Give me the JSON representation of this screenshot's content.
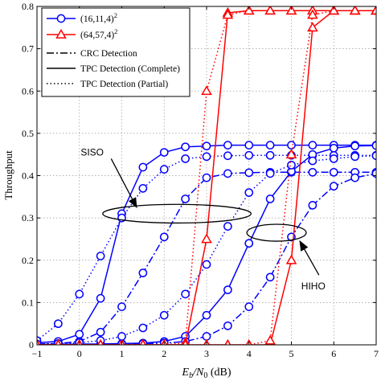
{
  "chart_data": {
    "type": "line",
    "xlabel": {
      "main": "E",
      "sub": "b",
      "mid": "/N",
      "sub2": "0",
      "unit": " (dB)"
    },
    "ylabel": "Throughput",
    "xlim": [
      -1,
      7
    ],
    "ylim": [
      0,
      0.8
    ],
    "xticks": [
      -1,
      0,
      1,
      2,
      3,
      4,
      5,
      6,
      7
    ],
    "xtick_labels": [
      "−1",
      "0",
      "1",
      "2",
      "3",
      "4",
      "5",
      "6",
      "7"
    ],
    "yticks": [
      0,
      0.1,
      0.2,
      0.3,
      0.4,
      0.5,
      0.6,
      0.7,
      0.8
    ],
    "ytick_labels": [
      "0",
      "0.1",
      "0.2",
      "0.3",
      "0.4",
      "0.5",
      "0.6",
      "0.7",
      "0.8"
    ],
    "grid": true,
    "legend_position": "top-left",
    "legend": [
      {
        "label": "(16,11,4)",
        "sup": "2",
        "color": "#0000ff",
        "marker": "circle",
        "dash": "solid"
      },
      {
        "label": "(64,57,4)",
        "sup": "2",
        "color": "#ff0000",
        "marker": "triangle",
        "dash": "solid"
      },
      {
        "label": "CRC Detection",
        "color": "#000000",
        "marker": "none",
        "dash": "dashdot"
      },
      {
        "label": "TPC Detection (Complete)",
        "color": "#000000",
        "marker": "none",
        "dash": "solid"
      },
      {
        "label": "TPC Detection (Partial)",
        "color": "#000000",
        "marker": "none",
        "dash": "dotted"
      }
    ],
    "x": [
      -1,
      -0.5,
      0,
      0.5,
      1,
      1.5,
      2,
      2.5,
      3,
      3.5,
      4,
      4.5,
      5,
      5.5,
      6,
      6.5,
      7
    ],
    "series": [
      {
        "color": "#0000ff",
        "marker": "circle",
        "dash": "solid",
        "values": [
          0.005,
          0.008,
          0.025,
          0.11,
          0.31,
          0.42,
          0.455,
          0.468,
          0.47,
          0.472,
          0.472,
          0.472,
          0.472,
          0.472,
          0.472,
          0.472,
          0.472
        ]
      },
      {
        "color": "#0000ff",
        "marker": "circle",
        "dash": "dashdot",
        "values": [
          0.002,
          0.003,
          0.008,
          0.03,
          0.09,
          0.17,
          0.255,
          0.345,
          0.395,
          0.405,
          0.407,
          0.408,
          0.408,
          0.408,
          0.408,
          0.408,
          0.408
        ]
      },
      {
        "color": "#0000ff",
        "marker": "circle",
        "dash": "dotted",
        "values": [
          0.01,
          0.05,
          0.12,
          0.21,
          0.3,
          0.37,
          0.415,
          0.44,
          0.445,
          0.447,
          0.448,
          0.448,
          0.448,
          0.448,
          0.448,
          0.448,
          0.448
        ]
      },
      {
        "color": "#0000ff",
        "marker": "circle",
        "dash": "solid",
        "values": [
          0.001,
          0.001,
          0.002,
          0.002,
          0.003,
          0.004,
          0.008,
          0.02,
          0.07,
          0.13,
          0.24,
          0.345,
          0.41,
          0.45,
          0.465,
          0.47,
          0.471
        ]
      },
      {
        "color": "#0000ff",
        "marker": "circle",
        "dash": "dashdot",
        "values": [
          0.0,
          0.0,
          0.001,
          0.001,
          0.002,
          0.003,
          0.004,
          0.008,
          0.02,
          0.045,
          0.09,
          0.16,
          0.255,
          0.33,
          0.375,
          0.395,
          0.405
        ]
      },
      {
        "color": "#0000ff",
        "marker": "circle",
        "dash": "dotted",
        "values": [
          0.002,
          0.003,
          0.005,
          0.01,
          0.02,
          0.04,
          0.07,
          0.12,
          0.19,
          0.28,
          0.36,
          0.405,
          0.425,
          0.435,
          0.44,
          0.445,
          0.447
        ]
      },
      {
        "color": "#ff0000",
        "marker": "triangle",
        "dash": "solid",
        "values": [
          0.0,
          0.0,
          0.0,
          0.0,
          0.0,
          0.0,
          0.0,
          0.0,
          0.25,
          0.785,
          0.79,
          0.79,
          0.79,
          0.79,
          0.79,
          0.79,
          0.79
        ]
      },
      {
        "color": "#ff0000",
        "marker": "triangle",
        "dash": "dotted",
        "values": [
          0.0,
          0.0,
          0.0,
          0.0,
          0.0,
          0.0,
          0.0,
          0.005,
          0.6,
          0.78,
          0.79,
          0.79,
          0.79,
          0.79,
          0.79,
          0.79,
          0.79
        ]
      },
      {
        "color": "#ff0000",
        "marker": "triangle",
        "dash": "solid",
        "values": [
          0.0,
          0.0,
          0.0,
          0.0,
          0.0,
          0.0,
          0.0,
          0.0,
          0.0,
          0.0,
          0.0,
          0.0,
          0.2,
          0.75,
          0.79,
          0.79,
          0.79
        ]
      },
      {
        "color": "#ff0000",
        "marker": "triangle",
        "dash": "dotted",
        "values": [
          0.0,
          0.0,
          0.0,
          0.0,
          0.0,
          0.0,
          0.0,
          0.0,
          0.0,
          0.0,
          0.0,
          0.01,
          0.45,
          0.78,
          0.79,
          0.79,
          0.79
        ]
      }
    ],
    "annotations": [
      {
        "text": "SISO",
        "ellipse_center": [
          2.3,
          0.31
        ],
        "ellipse_radius": [
          1.75,
          0.022
        ],
        "arrow_from": [
          0.75,
          0.44
        ],
        "arrow_to": [
          1.35,
          0.325
        ]
      },
      {
        "text": "HIHO",
        "ellipse_center": [
          4.65,
          0.265
        ],
        "ellipse_radius": [
          0.7,
          0.02
        ],
        "arrow_from": [
          5.65,
          0.165
        ],
        "arrow_to": [
          5.2,
          0.245
        ]
      }
    ]
  }
}
